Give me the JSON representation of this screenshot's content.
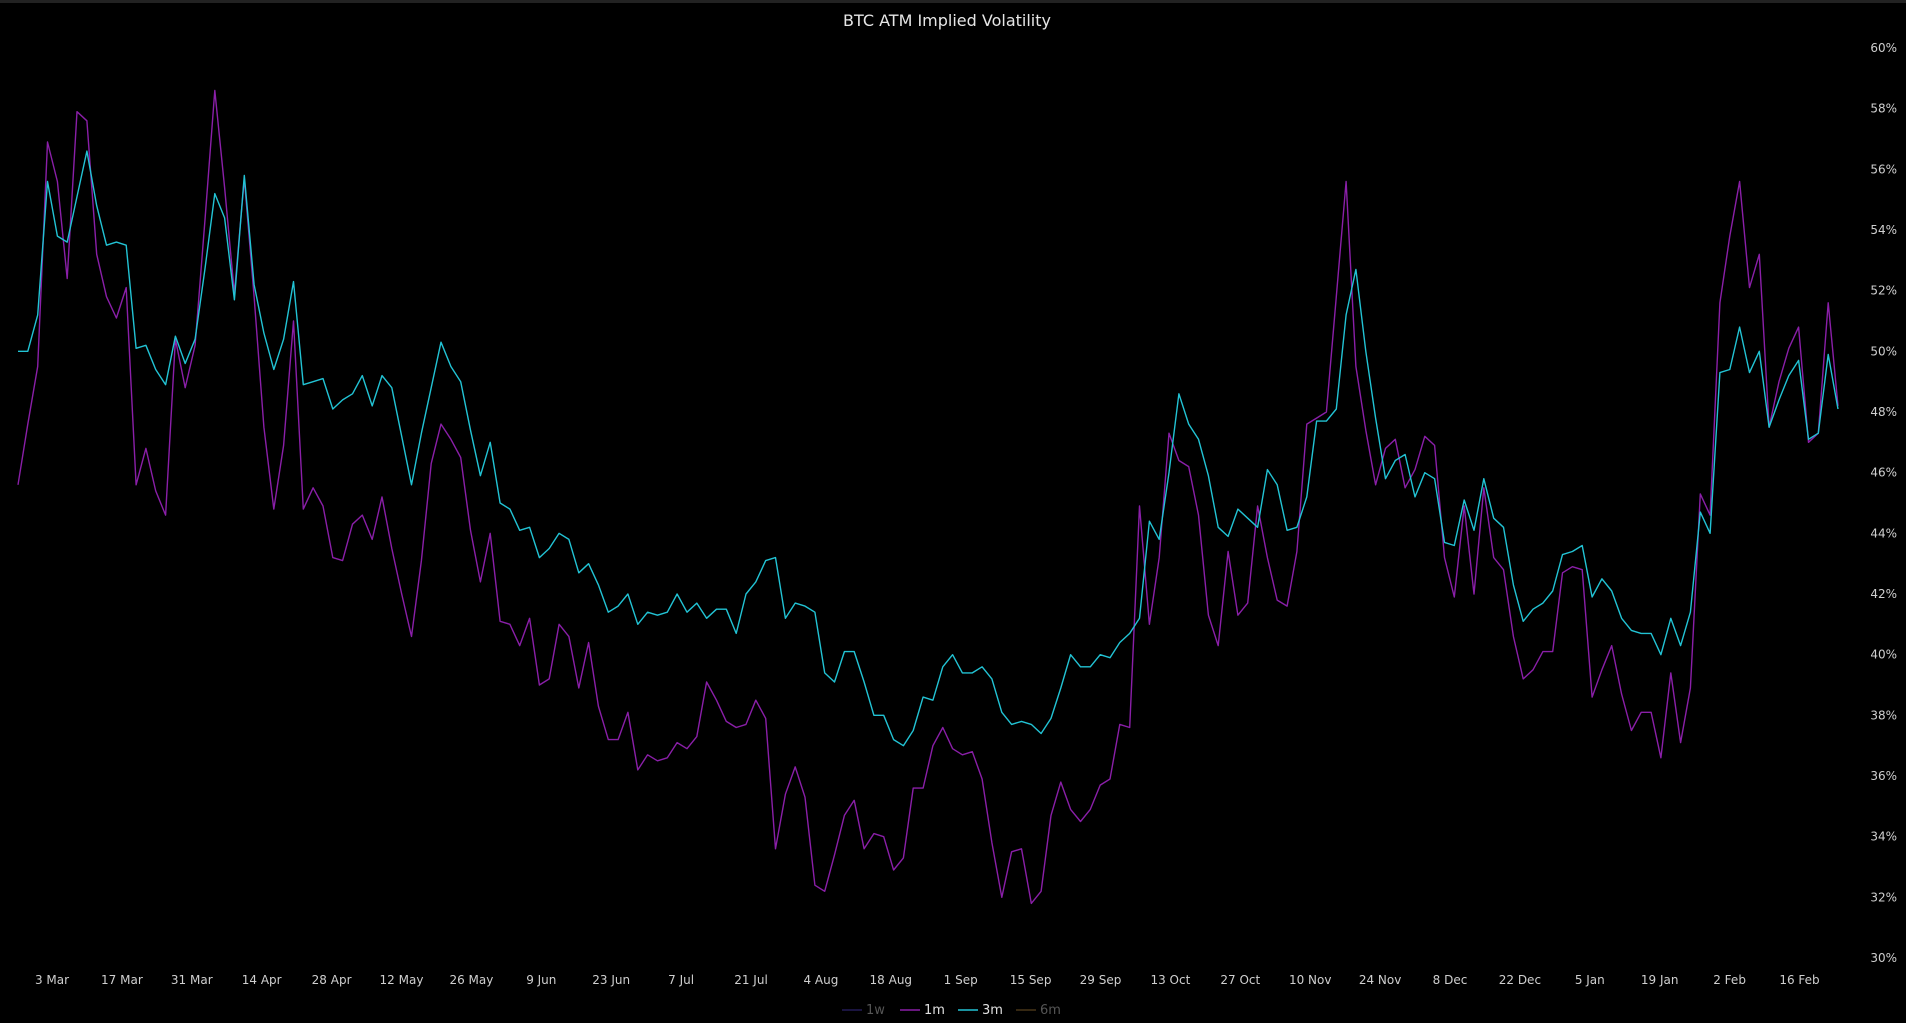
{
  "chart_data": {
    "type": "line",
    "title": "BTC ATM Implied Volatility",
    "xlabel": "",
    "ylabel": "",
    "ylim": [
      30,
      60
    ],
    "y_ticks": [
      60,
      58,
      56,
      54,
      52,
      50,
      48,
      46,
      44,
      42,
      40,
      38,
      36,
      34,
      32,
      30
    ],
    "y_tick_labels": [
      "60%",
      "58%",
      "56%",
      "54%",
      "52%",
      "50%",
      "48%",
      "46%",
      "44%",
      "42%",
      "40%",
      "38%",
      "36%",
      "34%",
      "32%",
      "30%"
    ],
    "x_tick_labels": [
      "3 Mar",
      "17 Mar",
      "31 Mar",
      "14 Apr",
      "28 Apr",
      "12 May",
      "26 May",
      "9 Jun",
      "23 Jun",
      "7 Jul",
      "21 Jul",
      "4 Aug",
      "18 Aug",
      "1 Sep",
      "15 Sep",
      "29 Sep",
      "13 Oct",
      "27 Oct",
      "10 Nov",
      "24 Nov",
      "8 Dec",
      "22 Dec",
      "5 Jan",
      "19 Jan",
      "2 Feb",
      "16 Feb"
    ],
    "legend_position": "bottom-center",
    "grid": false,
    "series": [
      {
        "name": "1w",
        "color": "#3a2f8f",
        "visible": false,
        "values": []
      },
      {
        "name": "1m",
        "color": "#8a1fa8",
        "visible": true,
        "values": [
          45.6,
          47.6,
          49.5,
          56.9,
          55.6,
          52.4,
          57.9,
          57.6,
          53.2,
          51.8,
          51.1,
          52.1,
          45.6,
          46.8,
          45.4,
          44.6,
          50.4,
          48.8,
          50.2,
          54.3,
          58.6,
          55.4,
          51.9,
          55.7,
          51.8,
          47.5,
          44.8,
          46.9,
          51.0,
          44.8,
          45.5,
          44.9,
          43.2,
          43.1,
          44.3,
          44.6,
          43.8,
          45.2,
          43.5,
          42.0,
          40.6,
          43.1,
          46.3,
          47.6,
          47.1,
          46.5,
          44.1,
          42.4,
          44.0,
          41.1,
          41.0,
          40.3,
          41.2,
          39.0,
          39.2,
          41.0,
          40.6,
          38.9,
          40.4,
          38.3,
          37.2,
          37.2,
          38.1,
          36.2,
          36.7,
          36.5,
          36.6,
          37.1,
          36.9,
          37.3,
          39.1,
          38.5,
          37.8,
          37.6,
          37.7,
          38.5,
          37.9,
          33.6,
          35.4,
          36.3,
          35.3,
          32.4,
          32.2,
          33.4,
          34.7,
          35.2,
          33.6,
          34.1,
          34.0,
          32.9,
          33.3,
          35.6,
          35.6,
          37.0,
          37.6,
          36.9,
          36.7,
          36.8,
          35.9,
          33.8,
          32.0,
          33.5,
          33.6,
          31.8,
          32.2,
          34.7,
          35.8,
          34.9,
          34.5,
          34.9,
          35.7,
          35.9,
          37.7,
          37.6,
          44.9,
          41.0,
          43.2,
          47.3,
          46.4,
          46.2,
          44.6,
          41.3,
          40.3,
          43.4,
          41.3,
          41.7,
          44.9,
          43.2,
          41.8,
          41.6,
          43.4,
          47.6,
          47.8,
          48.0,
          51.8,
          55.6,
          49.5,
          47.4,
          45.6,
          46.8,
          47.1,
          45.5,
          46.1,
          47.2,
          46.9,
          43.2,
          41.9,
          44.9,
          42.0,
          45.5,
          43.2,
          42.8,
          40.6,
          39.2,
          39.5,
          40.1,
          40.1,
          42.7,
          42.9,
          42.8,
          38.6,
          39.5,
          40.3,
          38.7,
          37.5,
          38.1,
          38.1,
          36.6,
          39.4,
          37.1,
          38.9,
          45.3,
          44.6,
          51.6,
          53.8,
          55.6,
          52.1,
          53.2,
          47.5,
          49.0,
          50.1,
          50.8,
          47.0,
          47.3,
          51.6,
          48.2
        ]
      },
      {
        "name": "3m",
        "color": "#22c3d4",
        "visible": true,
        "values": [
          50.0,
          50.0,
          51.2,
          55.6,
          53.8,
          53.6,
          55.1,
          56.6,
          54.8,
          53.5,
          53.6,
          53.5,
          50.1,
          50.2,
          49.4,
          48.9,
          50.5,
          49.6,
          50.4,
          52.7,
          55.2,
          54.4,
          51.7,
          55.8,
          52.2,
          50.6,
          49.4,
          50.4,
          52.3,
          48.9,
          49.0,
          49.1,
          48.1,
          48.4,
          48.6,
          49.2,
          48.2,
          49.2,
          48.8,
          47.2,
          45.6,
          47.3,
          48.8,
          50.3,
          49.5,
          49.0,
          47.4,
          45.9,
          47.0,
          45.0,
          44.8,
          44.1,
          44.2,
          43.2,
          43.5,
          44.0,
          43.8,
          42.7,
          43.0,
          42.3,
          41.4,
          41.6,
          42.0,
          41.0,
          41.4,
          41.3,
          41.4,
          42.0,
          41.4,
          41.7,
          41.2,
          41.5,
          41.5,
          40.7,
          42.0,
          42.4,
          43.1,
          43.2,
          41.2,
          41.7,
          41.6,
          41.4,
          39.4,
          39.1,
          40.1,
          40.1,
          39.1,
          38.0,
          38.0,
          37.2,
          37.0,
          37.5,
          38.6,
          38.5,
          39.6,
          40.0,
          39.4,
          39.4,
          39.6,
          39.2,
          38.1,
          37.7,
          37.8,
          37.7,
          37.4,
          37.9,
          38.9,
          40.0,
          39.6,
          39.6,
          40.0,
          39.9,
          40.4,
          40.7,
          41.2,
          44.4,
          43.8,
          46.0,
          48.6,
          47.6,
          47.1,
          45.9,
          44.2,
          43.9,
          44.8,
          44.5,
          44.2,
          46.1,
          45.6,
          44.1,
          44.2,
          45.2,
          47.7,
          47.7,
          48.1,
          51.2,
          52.7,
          50.0,
          47.8,
          45.8,
          46.4,
          46.6,
          45.2,
          46.0,
          45.8,
          43.7,
          43.6,
          45.1,
          44.1,
          45.8,
          44.5,
          44.2,
          42.3,
          41.1,
          41.5,
          41.7,
          42.1,
          43.3,
          43.4,
          43.6,
          41.9,
          42.5,
          42.1,
          41.2,
          40.8,
          40.7,
          40.7,
          40.0,
          41.2,
          40.3,
          41.4,
          44.7,
          44.0,
          49.3,
          49.4,
          50.8,
          49.3,
          50.0,
          47.5,
          48.4,
          49.2,
          49.7,
          47.1,
          47.3,
          49.9,
          48.1
        ]
      },
      {
        "name": "6m",
        "color": "#7a5a2a",
        "visible": false,
        "values": []
      }
    ]
  }
}
